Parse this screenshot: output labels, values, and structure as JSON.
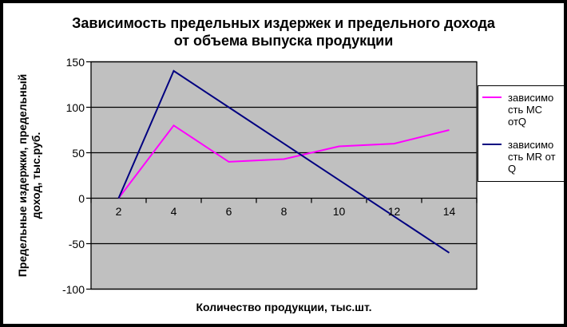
{
  "window": {
    "background": "#FFFFFF",
    "frame_border_color": "#000000"
  },
  "chart_data": {
    "type": "line",
    "title": "Зависимость предельных издержек и предельного дохода от объема выпуска продукции",
    "title_lines": [
      "Зависимость предельных издержек и предельного дохода",
      "от объема выпуска продукции"
    ],
    "xlabel": "Количество продукции, тыс.шт.",
    "ylabel": "Предельные издержки, предельный доход, тыс.руб.",
    "ylabel_lines": [
      "Предельные издержки, предельный",
      "доход, тыс.руб."
    ],
    "categories": [
      2,
      4,
      6,
      8,
      10,
      12,
      14
    ],
    "series": [
      {
        "name": "зависимость MC отQ",
        "name_lines": [
          "зависимо",
          "сть MC",
          "отQ"
        ],
        "color": "#FF00FF",
        "values": [
          0,
          80,
          40,
          43,
          57,
          60,
          75
        ]
      },
      {
        "name": "зависимость MR от Q",
        "name_lines": [
          "зависимо",
          "сть MR от",
          "Q"
        ],
        "color": "#000080",
        "values": [
          0,
          140,
          100,
          60,
          20,
          -20,
          -60
        ]
      }
    ],
    "y_ticks": [
      150,
      100,
      50,
      0,
      -50,
      -100
    ],
    "ylim": [
      -100,
      150
    ],
    "grid": true,
    "gridline_color": "#000000",
    "plot_bg": "#C0C0C0",
    "axis_color": "#000000",
    "legend_position": "right",
    "legend_bg": "#FFFFFF"
  }
}
